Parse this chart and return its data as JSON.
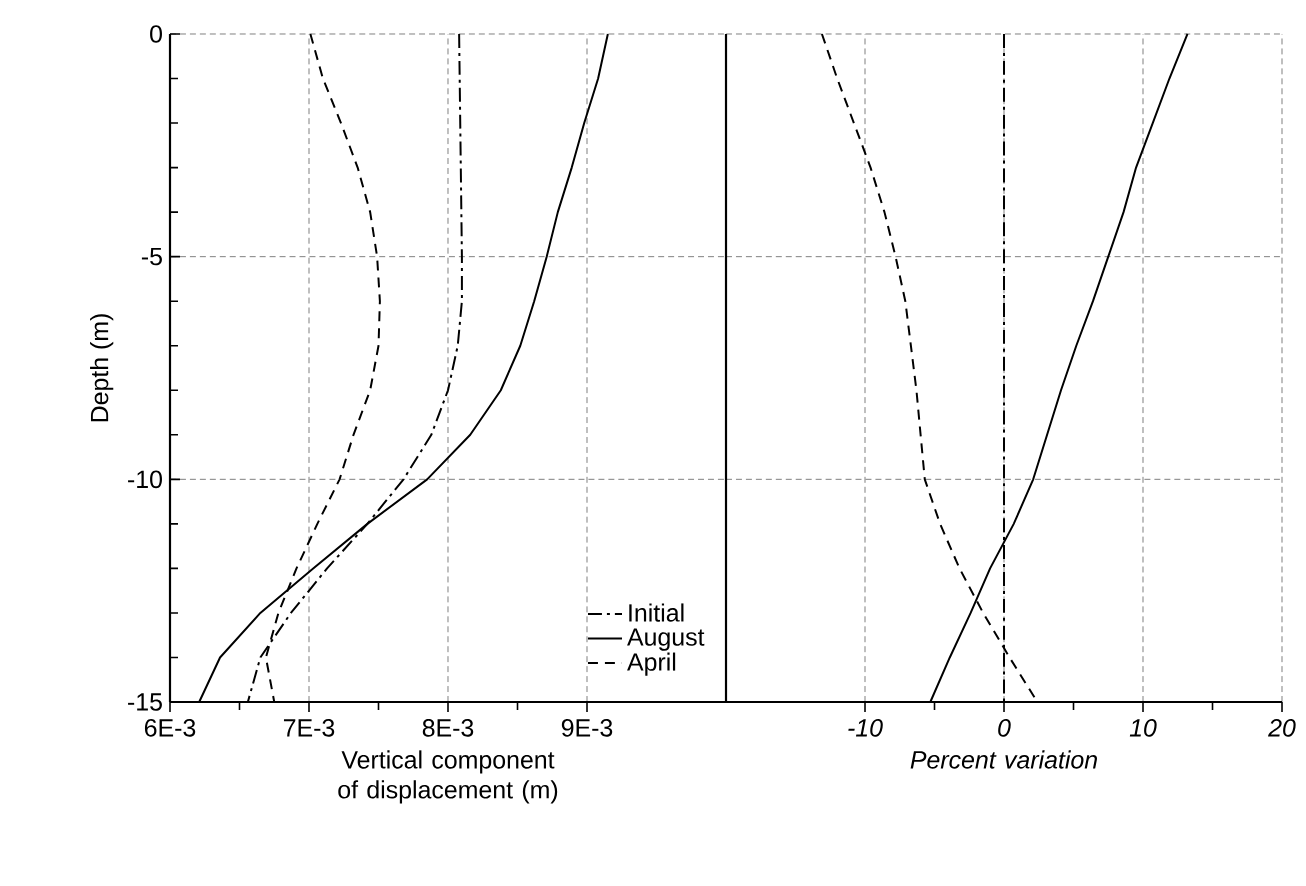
{
  "chart_data": [
    {
      "type": "line",
      "xlabel": "Vertical component of displacement (m)",
      "ylabel": "Depth (m)",
      "xlim": [
        0.006,
        0.01
      ],
      "ylim": [
        -15,
        0
      ],
      "xticks": [
        {
          "value": 0.006,
          "label": "6E-3"
        },
        {
          "value": 0.007,
          "label": "7E-3"
        },
        {
          "value": 0.008,
          "label": "8E-3"
        },
        {
          "value": 0.009,
          "label": "9E-3"
        }
      ],
      "yticks": [
        0,
        -5,
        -10,
        -15
      ],
      "grid": true,
      "legend": "bottom right",
      "series": [
        {
          "name": "Initial",
          "color": "#000000",
          "line_style": "dashdot",
          "x": [
            0.00808,
            0.0081,
            0.0081,
            0.00807,
            0.008,
            0.00788,
            0.00768,
            0.00742,
            0.00713,
            0.00687,
            0.00665,
            0.00656
          ],
          "values": [
            0,
            -5,
            -6,
            -7,
            -8,
            -9,
            -10,
            -11,
            -12,
            -13,
            -14,
            -15
          ]
        },
        {
          "name": "August",
          "color": "#000000",
          "line_style": "solid",
          "x": [
            0.00915,
            0.00908,
            0.00898,
            0.00889,
            0.00879,
            0.00871,
            0.00862,
            0.00852,
            0.00838,
            0.00816,
            0.00785,
            0.00742,
            0.00703,
            0.00665,
            0.00636,
            0.00621
          ],
          "values": [
            0,
            -1,
            -2,
            -3,
            -4,
            -5,
            -6,
            -7,
            -8,
            -9,
            -10,
            -11,
            -12,
            -13,
            -14,
            -15
          ]
        },
        {
          "name": "April",
          "color": "#000000",
          "line_style": "dashed",
          "x": [
            0.00701,
            0.0071,
            0.00723,
            0.00735,
            0.00744,
            0.00749,
            0.00751,
            0.0075,
            0.00744,
            0.00732,
            0.00722,
            0.00706,
            0.00691,
            0.00678,
            0.00669,
            0.00675
          ],
          "values": [
            0,
            -1,
            -2,
            -3,
            -4,
            -5,
            -6,
            -7,
            -8,
            -9,
            -10,
            -11,
            -12,
            -13,
            -14,
            -15
          ]
        }
      ]
    },
    {
      "type": "line",
      "xlabel": "Percent variation",
      "xlim": [
        -20,
        20
      ],
      "ylim": [
        -15,
        0
      ],
      "xticks": [
        -10,
        0,
        10,
        20
      ],
      "yticks": [
        0,
        -5,
        -10,
        -15
      ],
      "grid": true,
      "tick_labels": "x",
      "series": [
        {
          "color": "#000000",
          "line_style": "dashdot",
          "x": [
            0,
            0
          ],
          "values": [
            0,
            -15
          ]
        },
        {
          "color": "#000000",
          "line_style": "solid",
          "x": [
            13.2,
            11.9,
            10.7,
            9.5,
            8.6,
            7.5,
            6.4,
            5.2,
            4.1,
            3.1,
            2.1,
            0.7,
            -1.0,
            -2.4,
            -3.9,
            -5.3
          ],
          "values": [
            0,
            -1,
            -2,
            -3,
            -4,
            -5,
            -6,
            -7,
            -8,
            -9,
            -10,
            -11,
            -12,
            -13,
            -14,
            -15
          ]
        },
        {
          "color": "#000000",
          "line_style": "dashed",
          "x": [
            -13.1,
            -12.0,
            -10.8,
            -9.6,
            -8.6,
            -7.8,
            -7.1,
            -6.7,
            -6.3,
            -6.0,
            -5.7,
            -4.6,
            -3.2,
            -1.5,
            0.4,
            2.4
          ],
          "values": [
            0,
            -1,
            -2,
            -3,
            -4,
            -5,
            -6,
            -7,
            -8,
            -9,
            -10,
            -11,
            -12,
            -13,
            -14,
            -15
          ]
        }
      ]
    }
  ]
}
